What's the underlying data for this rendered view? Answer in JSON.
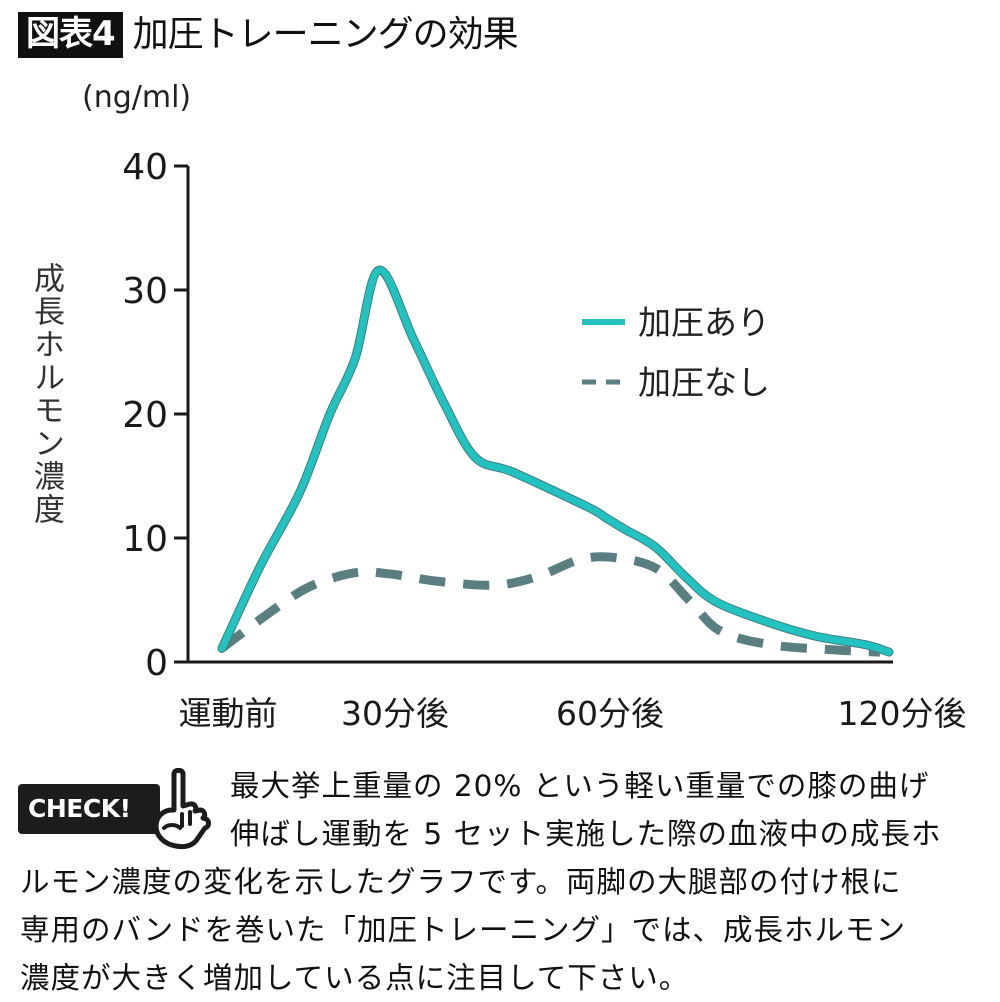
{
  "figure": {
    "badge": "図表4",
    "title": "加圧トレーニングの効果"
  },
  "chart_data": {
    "type": "line",
    "title": "加圧トレーニングの効果",
    "unit": "(ng/ml)",
    "ylabel": "成長ホルモン濃度",
    "xlabel": "",
    "ylim": [
      0,
      40
    ],
    "yticks": [
      0,
      10,
      20,
      30,
      40
    ],
    "ytick_labels": [
      "0",
      "10",
      "20",
      "30",
      "40"
    ],
    "x_categories": [
      {
        "label": "運動前",
        "t": 0
      },
      {
        "label": "30分後",
        "t": 30
      },
      {
        "label": "60分後",
        "t": 60
      },
      {
        "label": "120分後",
        "t": 120
      }
    ],
    "x_unit": "minutes after exercise (approximate, read from curve)",
    "grid": false,
    "legend_position": "top-right",
    "series": [
      {
        "name": "加圧あり",
        "style": "solid",
        "color": "#22c2c0",
        "points": [
          [
            0,
            1.1
          ],
          [
            6.6,
            7.7
          ],
          [
            13.5,
            13.7
          ],
          [
            18.7,
            20.0
          ],
          [
            23.1,
            24.5
          ],
          [
            27.2,
            31.6
          ],
          [
            32.6,
            26.0
          ],
          [
            36.9,
            20.8
          ],
          [
            41.2,
            16.5
          ],
          [
            46.5,
            15.3
          ],
          [
            56.9,
            12.5
          ],
          [
            59.5,
            11.6
          ],
          [
            63.3,
            10.7
          ],
          [
            70.0,
            9.3
          ],
          [
            76.7,
            6.9
          ],
          [
            83.3,
            4.9
          ],
          [
            94.4,
            3.3
          ],
          [
            105.5,
            2.1
          ],
          [
            116.7,
            1.4
          ],
          [
            122.0,
            0.8
          ]
        ]
      },
      {
        "name": "加圧なし",
        "style": "dashed",
        "color": "#5b7f80",
        "points": [
          [
            0,
            1.1
          ],
          [
            8.3,
            4.0
          ],
          [
            15.3,
            6.1
          ],
          [
            23.1,
            7.2
          ],
          [
            29.1,
            7.1
          ],
          [
            36.1,
            6.5
          ],
          [
            43.9,
            6.2
          ],
          [
            49.9,
            6.9
          ],
          [
            56.0,
            8.3
          ],
          [
            61.6,
            8.4
          ],
          [
            70.5,
            7.5
          ],
          [
            77.8,
            4.9
          ],
          [
            84.5,
            2.5
          ],
          [
            95.5,
            1.4
          ],
          [
            108.9,
            1.0
          ],
          [
            120.0,
            0.8
          ]
        ]
      }
    ]
  },
  "check": {
    "badge_label": "CHECK!",
    "icon": "pointing-hand-icon"
  },
  "description": {
    "line1": "最大挙上重量の 20% という軽い重量での膝の曲げ",
    "line2": "伸ばし運動を 5 セット実施した際の血液中の成長ホ",
    "line3": "ルモン濃度の変化を示したグラフです。両脚の大腿部の付け根に",
    "line4": "専用のバンドを巻いた「加圧トレーニング」では、成長ホルモン",
    "line5": "濃度が大きく増加している点に注目して下さい。"
  }
}
